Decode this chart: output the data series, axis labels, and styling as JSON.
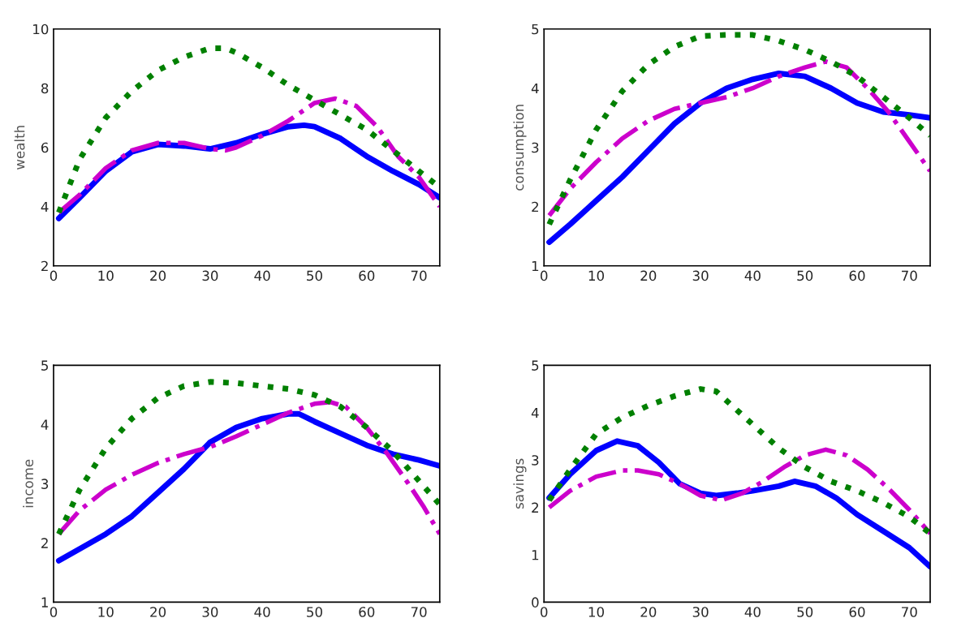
{
  "chart_data": [
    {
      "type": "line",
      "ylabel": "wealth",
      "xlim": [
        0,
        74
      ],
      "xticks": [
        0,
        10,
        20,
        30,
        40,
        50,
        60,
        70
      ],
      "ylim": [
        2,
        10
      ],
      "yticks": [
        2,
        4,
        6,
        8,
        10
      ],
      "grid": false,
      "legend": false,
      "series": [
        {
          "color": "#0000ff",
          "line_style": "solid",
          "x": [
            1,
            5,
            10,
            15,
            20,
            25,
            30,
            35,
            40,
            45,
            48,
            50,
            55,
            60,
            65,
            70,
            74
          ],
          "values": [
            3.6,
            4.3,
            5.2,
            5.85,
            6.1,
            6.05,
            5.95,
            6.15,
            6.45,
            6.7,
            6.75,
            6.7,
            6.3,
            5.7,
            5.2,
            4.75,
            4.3
          ]
        },
        {
          "color": "#cc00cc",
          "line_style": "dashdot",
          "x": [
            1,
            5,
            10,
            15,
            20,
            25,
            30,
            33,
            35,
            40,
            45,
            50,
            54,
            58,
            62,
            66,
            70,
            74
          ],
          "values": [
            3.8,
            4.4,
            5.3,
            5.9,
            6.15,
            6.15,
            5.95,
            5.9,
            6.0,
            6.4,
            6.9,
            7.5,
            7.65,
            7.4,
            6.7,
            5.7,
            5.0,
            4.0
          ]
        },
        {
          "color": "#008000",
          "line_style": "dotted",
          "x": [
            1,
            5,
            10,
            15,
            20,
            25,
            30,
            33,
            35,
            40,
            45,
            50,
            55,
            60,
            65,
            70,
            74
          ],
          "values": [
            3.8,
            5.6,
            7.0,
            7.9,
            8.6,
            9.05,
            9.35,
            9.35,
            9.2,
            8.7,
            8.1,
            7.6,
            7.1,
            6.6,
            5.9,
            5.2,
            4.65
          ]
        }
      ]
    },
    {
      "type": "line",
      "ylabel": "consumption",
      "xlim": [
        0,
        74
      ],
      "xticks": [
        0,
        10,
        20,
        30,
        40,
        50,
        60,
        70
      ],
      "ylim": [
        1,
        5
      ],
      "yticks": [
        1,
        2,
        3,
        4,
        5
      ],
      "grid": false,
      "legend": false,
      "series": [
        {
          "color": "#0000ff",
          "line_style": "solid",
          "x": [
            1,
            5,
            10,
            15,
            20,
            25,
            30,
            35,
            40,
            45,
            50,
            55,
            60,
            65,
            70,
            74
          ],
          "values": [
            1.4,
            1.7,
            2.1,
            2.5,
            2.95,
            3.4,
            3.75,
            4.0,
            4.15,
            4.25,
            4.2,
            4.0,
            3.75,
            3.6,
            3.55,
            3.5
          ]
        },
        {
          "color": "#cc00cc",
          "line_style": "dashdot",
          "x": [
            1,
            5,
            10,
            15,
            20,
            25,
            30,
            35,
            40,
            45,
            50,
            54,
            58,
            62,
            66,
            70,
            74
          ],
          "values": [
            1.85,
            2.3,
            2.75,
            3.15,
            3.45,
            3.65,
            3.75,
            3.85,
            4.0,
            4.2,
            4.35,
            4.45,
            4.35,
            4.0,
            3.6,
            3.1,
            2.6
          ]
        },
        {
          "color": "#008000",
          "line_style": "dotted",
          "x": [
            1,
            5,
            10,
            15,
            20,
            25,
            30,
            35,
            40,
            45,
            50,
            55,
            60,
            65,
            70,
            74
          ],
          "values": [
            1.7,
            2.45,
            3.3,
            3.95,
            4.4,
            4.7,
            4.88,
            4.9,
            4.9,
            4.8,
            4.65,
            4.45,
            4.2,
            3.85,
            3.5,
            3.2
          ]
        }
      ]
    },
    {
      "type": "line",
      "ylabel": "income",
      "xlim": [
        0,
        74
      ],
      "xticks": [
        0,
        10,
        20,
        30,
        40,
        50,
        60,
        70
      ],
      "ylim": [
        1,
        5
      ],
      "yticks": [
        1,
        2,
        3,
        4,
        5
      ],
      "grid": false,
      "legend": false,
      "series": [
        {
          "color": "#0000ff",
          "line_style": "solid",
          "x": [
            1,
            5,
            10,
            15,
            20,
            25,
            30,
            35,
            40,
            45,
            47,
            50,
            55,
            60,
            65,
            70,
            74
          ],
          "values": [
            1.7,
            1.9,
            2.15,
            2.45,
            2.85,
            3.25,
            3.7,
            3.95,
            4.1,
            4.18,
            4.18,
            4.05,
            3.85,
            3.65,
            3.5,
            3.4,
            3.3
          ]
        },
        {
          "color": "#cc00cc",
          "line_style": "dashdot",
          "x": [
            1,
            5,
            10,
            15,
            20,
            25,
            30,
            35,
            40,
            45,
            50,
            53,
            56,
            60,
            64,
            68,
            71,
            74
          ],
          "values": [
            2.15,
            2.55,
            2.9,
            3.15,
            3.35,
            3.5,
            3.62,
            3.8,
            4.0,
            4.2,
            4.35,
            4.38,
            4.3,
            3.95,
            3.5,
            3.0,
            2.6,
            2.15
          ]
        },
        {
          "color": "#008000",
          "line_style": "dotted",
          "x": [
            1,
            5,
            10,
            15,
            20,
            25,
            30,
            35,
            40,
            45,
            50,
            55,
            60,
            65,
            70,
            74
          ],
          "values": [
            2.15,
            2.9,
            3.6,
            4.1,
            4.45,
            4.65,
            4.72,
            4.7,
            4.65,
            4.6,
            4.5,
            4.3,
            3.95,
            3.55,
            3.05,
            2.65
          ]
        }
      ]
    },
    {
      "type": "line",
      "ylabel": "savings",
      "xlim": [
        0,
        74
      ],
      "xticks": [
        0,
        10,
        20,
        30,
        40,
        50,
        60,
        70
      ],
      "ylim": [
        0,
        5
      ],
      "yticks": [
        0,
        1,
        2,
        3,
        4,
        5
      ],
      "grid": false,
      "legend": false,
      "series": [
        {
          "color": "#0000ff",
          "line_style": "solid",
          "x": [
            1,
            5,
            10,
            14,
            18,
            22,
            26,
            30,
            33,
            37,
            40,
            45,
            48,
            52,
            56,
            60,
            65,
            70,
            74
          ],
          "values": [
            2.2,
            2.7,
            3.2,
            3.4,
            3.3,
            2.95,
            2.5,
            2.3,
            2.25,
            2.3,
            2.35,
            2.45,
            2.55,
            2.45,
            2.2,
            1.85,
            1.5,
            1.15,
            0.75
          ]
        },
        {
          "color": "#cc00cc",
          "line_style": "dashdot",
          "x": [
            1,
            5,
            10,
            15,
            18,
            22,
            26,
            30,
            34,
            38,
            42,
            46,
            50,
            54,
            58,
            62,
            66,
            70,
            74
          ],
          "values": [
            2.0,
            2.35,
            2.65,
            2.78,
            2.78,
            2.7,
            2.5,
            2.25,
            2.15,
            2.3,
            2.55,
            2.85,
            3.1,
            3.22,
            3.1,
            2.8,
            2.4,
            1.95,
            1.45
          ]
        },
        {
          "color": "#008000",
          "line_style": "dotted",
          "x": [
            1,
            5,
            10,
            15,
            20,
            25,
            30,
            33,
            36,
            40,
            45,
            50,
            55,
            60,
            65,
            70,
            74
          ],
          "values": [
            2.15,
            2.8,
            3.55,
            3.9,
            4.15,
            4.35,
            4.5,
            4.45,
            4.15,
            3.75,
            3.25,
            2.85,
            2.55,
            2.35,
            2.1,
            1.8,
            1.45
          ]
        }
      ]
    }
  ]
}
